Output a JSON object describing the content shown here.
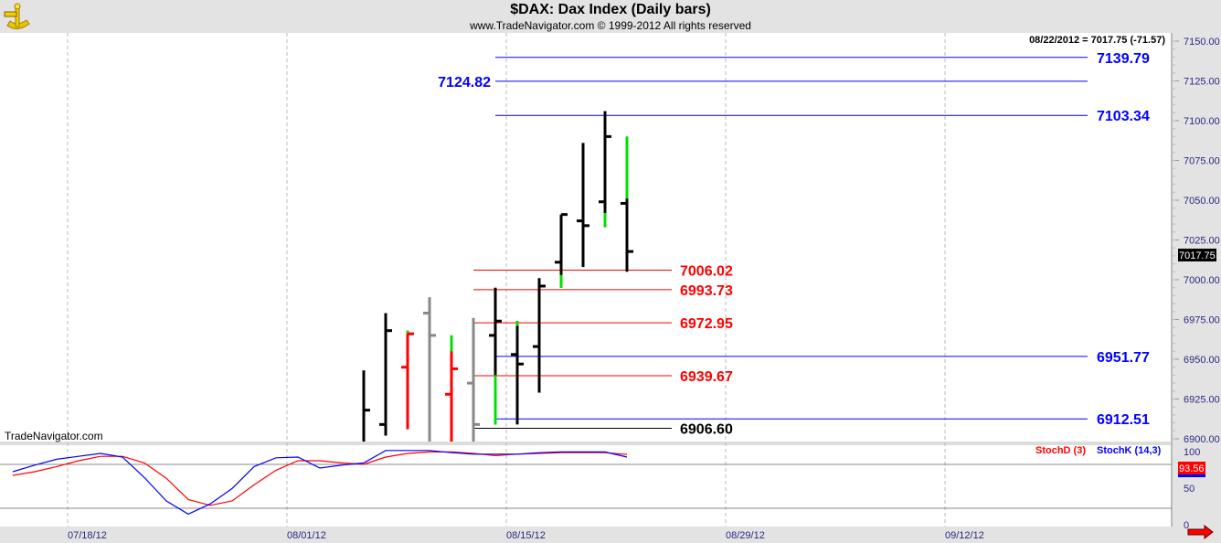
{
  "header": {
    "title": "$DAX:  Dax Index  (Daily bars)",
    "subtitle": "www.TradeNavigator.com © 1999-2012 All rights reserved",
    "logo_icon": "sextant-icon"
  },
  "price_panel": {
    "readout": "08/22/2012 = 7017.75 (-71.57)",
    "last_price_label": "7017.75",
    "watermark": "TradeNavigator.com",
    "y_ticks": [
      "7150.00",
      "7125.00",
      "7100.00",
      "7075.00",
      "7050.00",
      "7025.00",
      "7000.00",
      "6975.00",
      "6950.00",
      "6925.00",
      "6900.00"
    ]
  },
  "levels": [
    {
      "label": "7139.79",
      "value": 7139.79,
      "color": "#0000ff",
      "span": "long",
      "label_side": "right"
    },
    {
      "label": "7124.82",
      "value": 7124.82,
      "color": "#0000ff",
      "span": "long",
      "label_side": "left"
    },
    {
      "label": "7103.34",
      "value": 7103.34,
      "color": "#0000ff",
      "span": "long",
      "label_side": "right"
    },
    {
      "label": "7006.02",
      "value": 7006.02,
      "color": "#ff0000",
      "span": "short",
      "label_side": "right"
    },
    {
      "label": "6993.73",
      "value": 6993.73,
      "color": "#ff0000",
      "span": "short",
      "label_side": "right"
    },
    {
      "label": "6972.95",
      "value": 6972.95,
      "color": "#ff0000",
      "span": "short",
      "label_side": "right"
    },
    {
      "label": "6951.77",
      "value": 6951.77,
      "color": "#0000ff",
      "span": "long",
      "label_side": "right"
    },
    {
      "label": "6939.67",
      "value": 6939.67,
      "color": "#ff0000",
      "span": "short",
      "label_side": "right"
    },
    {
      "label": "6912.51",
      "value": 6912.51,
      "color": "#0000ff",
      "span": "long",
      "label_side": "right"
    },
    {
      "label": "6906.60",
      "value": 6906.6,
      "color": "#000000",
      "span": "short",
      "label_side": "right"
    }
  ],
  "chart_data": {
    "type": "ohlc",
    "bars": [
      {
        "h": 6943,
        "l": 6895,
        "c": 6918,
        "color": "#000000"
      },
      {
        "o": 6909,
        "h": 6979,
        "l": 6902,
        "c": 6968,
        "color": "#000000"
      },
      {
        "o": 6945,
        "h": 6968,
        "l": 6906,
        "c": 6966,
        "color": "#ff0000",
        "green": [
          6966,
          6968
        ]
      },
      {
        "o": 6979,
        "h": 6989,
        "l": 6895,
        "c": 6965,
        "color": "#888888"
      },
      {
        "o": 6928,
        "h": 6965,
        "l": 6895,
        "c": 6944,
        "color": "#ff0000",
        "green": [
          6955,
          6965
        ]
      },
      {
        "o": 6935,
        "h": 6976,
        "l": 6895,
        "c": 6909,
        "color": "#888888"
      },
      {
        "o": 6965,
        "h": 6995,
        "l": 6909,
        "c": 6974,
        "color": "#000000",
        "green": [
          6909,
          6940
        ]
      },
      {
        "o": 6953,
        "h": 6974,
        "l": 6909,
        "c": 6947,
        "color": "#000000",
        "green": [
          6971,
          6974
        ]
      },
      {
        "o": 6958,
        "h": 7001,
        "l": 6929,
        "c": 6996,
        "color": "#000000"
      },
      {
        "o": 7011,
        "h": 7041,
        "l": 6995,
        "c": 7041,
        "color": "#000000",
        "green": [
          6995,
          7003
        ]
      },
      {
        "o": 7037,
        "h": 7086,
        "l": 7008,
        "c": 7034,
        "color": "#000000"
      },
      {
        "o": 7049,
        "h": 7106,
        "l": 7033,
        "c": 7090,
        "color": "#000000",
        "green": [
          7033,
          7042
        ]
      },
      {
        "o": 7048,
        "h": 7090,
        "l": 7005,
        "c": 7017.75,
        "color": "#000000",
        "green": [
          7051,
          7090
        ]
      }
    ],
    "ylim": [
      6900,
      7150
    ],
    "x_tick_labels": [
      "07/18/12",
      "08/01/12",
      "08/15/12",
      "08/29/12",
      "09/12/12"
    ],
    "grid": "vertical dashed"
  },
  "stoch_panel": {
    "stochd_label": "StochD (3)",
    "stochk_label": "StochK (14,3)",
    "last_value_label": "93.56",
    "y_ticks": [
      "100",
      "50",
      "0"
    ],
    "levels": [
      80,
      20
    ],
    "stochk": [
      70,
      79,
      87,
      91,
      95,
      90,
      62,
      30,
      12,
      26,
      47,
      77,
      89,
      90,
      75,
      79,
      82,
      99,
      99,
      99,
      96,
      94,
      94,
      94,
      96,
      97,
      97,
      97,
      90
    ],
    "stochd": [
      65,
      70,
      77,
      85,
      91,
      91,
      82,
      61,
      32,
      24,
      30,
      52,
      72,
      85,
      85,
      82,
      80,
      90,
      95,
      97,
      97,
      95,
      92,
      94,
      95,
      96,
      96,
      96,
      93.56
    ],
    "stochk_color": "#0000ff",
    "stochd_color": "#ff0000"
  },
  "nav": {
    "scroll_right_icon": "arrow-right-icon"
  }
}
